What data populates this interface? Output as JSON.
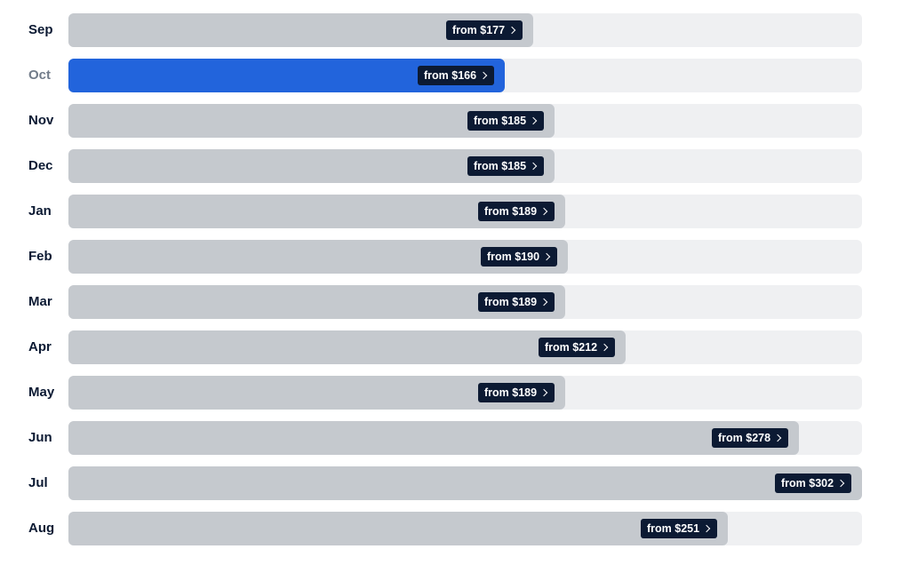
{
  "chart_data": {
    "type": "bar",
    "orientation": "horizontal",
    "title": "",
    "xlabel": "",
    "ylabel": "",
    "categories": [
      "Sep",
      "Oct",
      "Nov",
      "Dec",
      "Jan",
      "Feb",
      "Mar",
      "Apr",
      "May",
      "Jun",
      "Jul",
      "Aug"
    ],
    "values": [
      177,
      166,
      185,
      185,
      189,
      190,
      189,
      212,
      189,
      278,
      302,
      251
    ],
    "price_labels": [
      "from $177",
      "from $166",
      "from $185",
      "from $185",
      "from $189",
      "from $190",
      "from $189",
      "from $212",
      "from $189",
      "from $278",
      "from $302",
      "from $251"
    ],
    "selected_category": "Oct",
    "xlim": [
      0,
      302
    ],
    "grid": false,
    "colors": {
      "bar": "#c5c9ce",
      "bar_selected": "#2264dc",
      "track": "#eff0f2",
      "label_bg": "#0c1a33",
      "label_text": "#ffffff",
      "month_text": "#0c1a33",
      "month_selected_text": "#727c8a"
    },
    "label_icon": "chevron-right-icon"
  }
}
